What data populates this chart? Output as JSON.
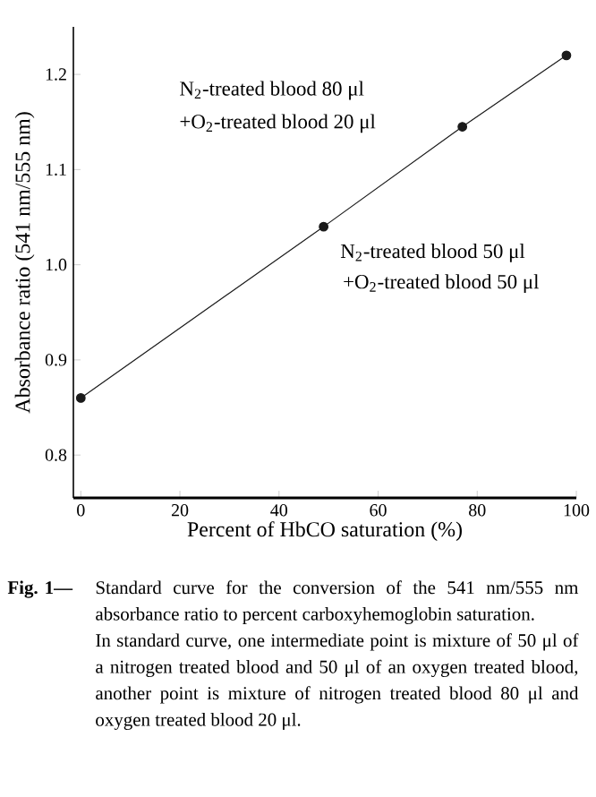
{
  "chart_data": {
    "type": "line",
    "xlabel": "Percent of HbCO saturation (%)",
    "ylabel": "Absorbance ratio (541 nm/555 nm)",
    "x": [
      0,
      49,
      77,
      98
    ],
    "values": [
      0.86,
      1.04,
      1.145,
      1.22
    ],
    "color": "#1a1a1a",
    "marker": "circle",
    "line_style": "solid",
    "xlim": [
      -1.5,
      100
    ],
    "xticks": [
      0,
      20,
      40,
      60,
      80,
      100
    ],
    "ylim": [
      0.755,
      1.25
    ],
    "yticks": [
      0.8,
      0.9,
      {
        "value": 1.0,
        "label": "1.0"
      },
      1.1,
      1.2
    ],
    "annotations": [
      "N$_{2}$-treated blood 80 μl",
      "+O$_{2}$-treated blood 20 μl",
      "N$_{2}$-treated blood 50 μl",
      "+O$_{2}$-treated blood 50 μl",
      "Fig. 1—",
      "Standard curve for the conversion of the 541 nm/555 nm absorbance ratio to percent carboxyhemoglobin saturation.",
      "In standard curve, one intermediate point is mixture of 50 μl of a nitrogen treated blood and 50 μl of an oxygen treated blood, another point is mixture of nitrogen treated blood 80 μl and oxygen treated blood 20 μl."
    ]
  }
}
